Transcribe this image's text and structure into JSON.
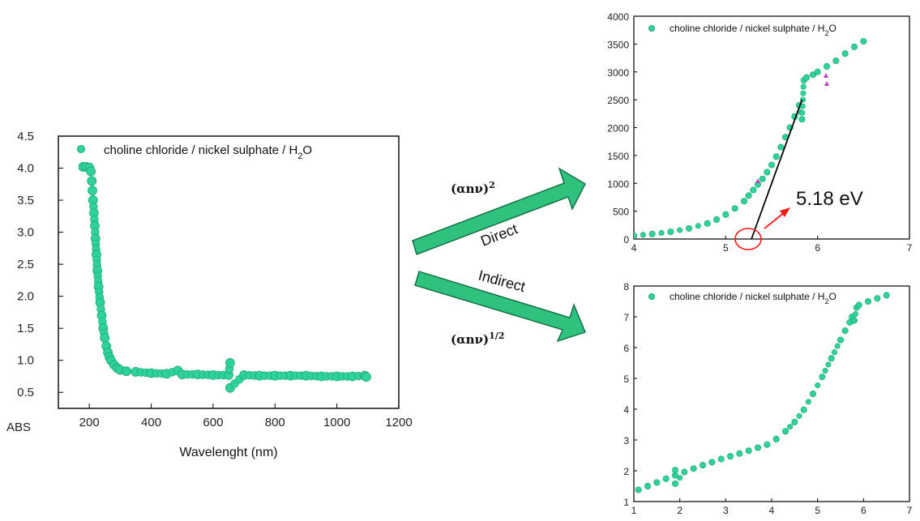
{
  "colors": {
    "marker": "#2fd39a",
    "marker_stroke": "#1aa878",
    "arrow_fill": "#2ec27e",
    "arrow_stroke": "#0f6b3e",
    "fit_line": "#000000",
    "highlight": "#ff1a1a",
    "outlier": "#c040c0"
  },
  "labels": {
    "direct_formula": "(αnν)",
    "direct_exp": "2",
    "indirect_formula": "(αnν)",
    "indirect_exp": "1/2",
    "direct": "Direct",
    "indirect": "Indirect",
    "gap_value": "5.18 eV"
  },
  "chart_data": [
    {
      "type": "scatter",
      "ylabel": "ABS",
      "xlabel": "Wavelenght (nm)",
      "legend_position": "top",
      "legend": {
        "text": "choline chloride / nickel sulphate / H",
        "sub": "2",
        "tail": "O"
      },
      "xlim": [
        100,
        1200
      ],
      "ylim": [
        0.25,
        4.5
      ],
      "xticks": [
        200,
        400,
        600,
        800,
        1000,
        1200
      ],
      "yticks": [
        0.5,
        1.0,
        1.5,
        2.0,
        2.5,
        3.0,
        3.5,
        4.0,
        4.5
      ],
      "ytick_labels": [
        "0.5",
        "1.0",
        "1.5",
        "2.0",
        "2.5",
        "3.0",
        "3.5",
        "4.0",
        "4.5"
      ],
      "series": [
        {
          "x": [
            180,
            190,
            200,
            205,
            208,
            210,
            212,
            215,
            218,
            220,
            223,
            226,
            230,
            235,
            240,
            245,
            250,
            255,
            260,
            265,
            270,
            280,
            290,
            300,
            320,
            350,
            400,
            450,
            486,
            500,
            550,
            600,
            650,
            655,
            655,
            700,
            750,
            800,
            850,
            900,
            950,
            1000,
            1050,
            1090,
            1095
          ],
          "y": [
            4.02,
            4.02,
            4.01,
            3.95,
            3.8,
            3.65,
            3.5,
            3.3,
            3.1,
            2.9,
            2.65,
            2.4,
            2.15,
            1.9,
            1.7,
            1.5,
            1.35,
            1.22,
            1.12,
            1.05,
            1.0,
            0.93,
            0.88,
            0.85,
            0.83,
            0.82,
            0.8,
            0.79,
            0.84,
            0.78,
            0.78,
            0.77,
            0.77,
            0.96,
            0.57,
            0.77,
            0.76,
            0.76,
            0.76,
            0.76,
            0.75,
            0.75,
            0.75,
            0.76,
            0.74
          ]
        }
      ]
    },
    {
      "type": "scatter",
      "legend_position": "top",
      "legend": {
        "text": "choline chloride / nickel sulphate / H",
        "sub": "2",
        "tail": "O"
      },
      "xlim": [
        4,
        7
      ],
      "ylim": [
        0,
        4000
      ],
      "xticks": [
        4,
        5,
        6,
        7
      ],
      "yticks": [
        0,
        500,
        1000,
        1500,
        2000,
        2500,
        3000,
        3500,
        4000
      ],
      "series": [
        {
          "x": [
            4.0,
            4.2,
            4.4,
            4.6,
            4.8,
            4.9,
            5.0,
            5.1,
            5.2,
            5.25,
            5.3,
            5.35,
            5.4,
            5.45,
            5.5,
            5.55,
            5.6,
            5.65,
            5.7,
            5.75,
            5.8,
            5.83,
            5.85,
            5.88,
            5.95,
            6.0,
            6.1,
            6.2,
            6.3,
            6.4,
            6.5
          ],
          "y": [
            60,
            90,
            130,
            190,
            280,
            350,
            440,
            550,
            680,
            780,
            880,
            980,
            1080,
            1200,
            1330,
            1480,
            1650,
            1830,
            2000,
            2200,
            2400,
            2150,
            2850,
            2900,
            2950,
            3000,
            3100,
            3200,
            3330,
            3450,
            3550
          ]
        }
      ],
      "fit_line": {
        "x": [
          5.28,
          5.83
        ],
        "y": [
          0,
          2500
        ]
      },
      "band_gap": 5.18
    },
    {
      "type": "scatter",
      "legend_position": "top",
      "legend": {
        "text": "choline chloride / nickel sulphate / H",
        "sub": "2",
        "tail": "O"
      },
      "xlim": [
        1,
        7
      ],
      "ylim": [
        1,
        8
      ],
      "xticks": [
        1,
        2,
        3,
        4,
        5,
        6,
        7
      ],
      "yticks": [
        1,
        2,
        3,
        4,
        5,
        6,
        7,
        8
      ],
      "series": [
        {
          "x": [
            1.1,
            1.3,
            1.5,
            1.7,
            1.9,
            1.9,
            1.9,
            2.1,
            2.3,
            2.5,
            2.7,
            2.9,
            3.1,
            3.3,
            3.5,
            3.7,
            3.9,
            4.1,
            4.3,
            4.5,
            4.7,
            4.9,
            5.1,
            5.3,
            5.5,
            5.6,
            5.7,
            5.75,
            5.8,
            5.85,
            5.9,
            6.1,
            6.3,
            6.5
          ],
          "y": [
            1.38,
            1.5,
            1.62,
            1.74,
            1.85,
            2.02,
            1.58,
            1.96,
            2.07,
            2.18,
            2.28,
            2.38,
            2.47,
            2.56,
            2.65,
            2.75,
            2.85,
            3.03,
            3.28,
            3.58,
            3.98,
            4.5,
            5.05,
            5.65,
            6.25,
            6.55,
            6.82,
            7.0,
            6.88,
            7.3,
            7.38,
            7.5,
            7.6,
            7.7
          ]
        }
      ]
    }
  ]
}
